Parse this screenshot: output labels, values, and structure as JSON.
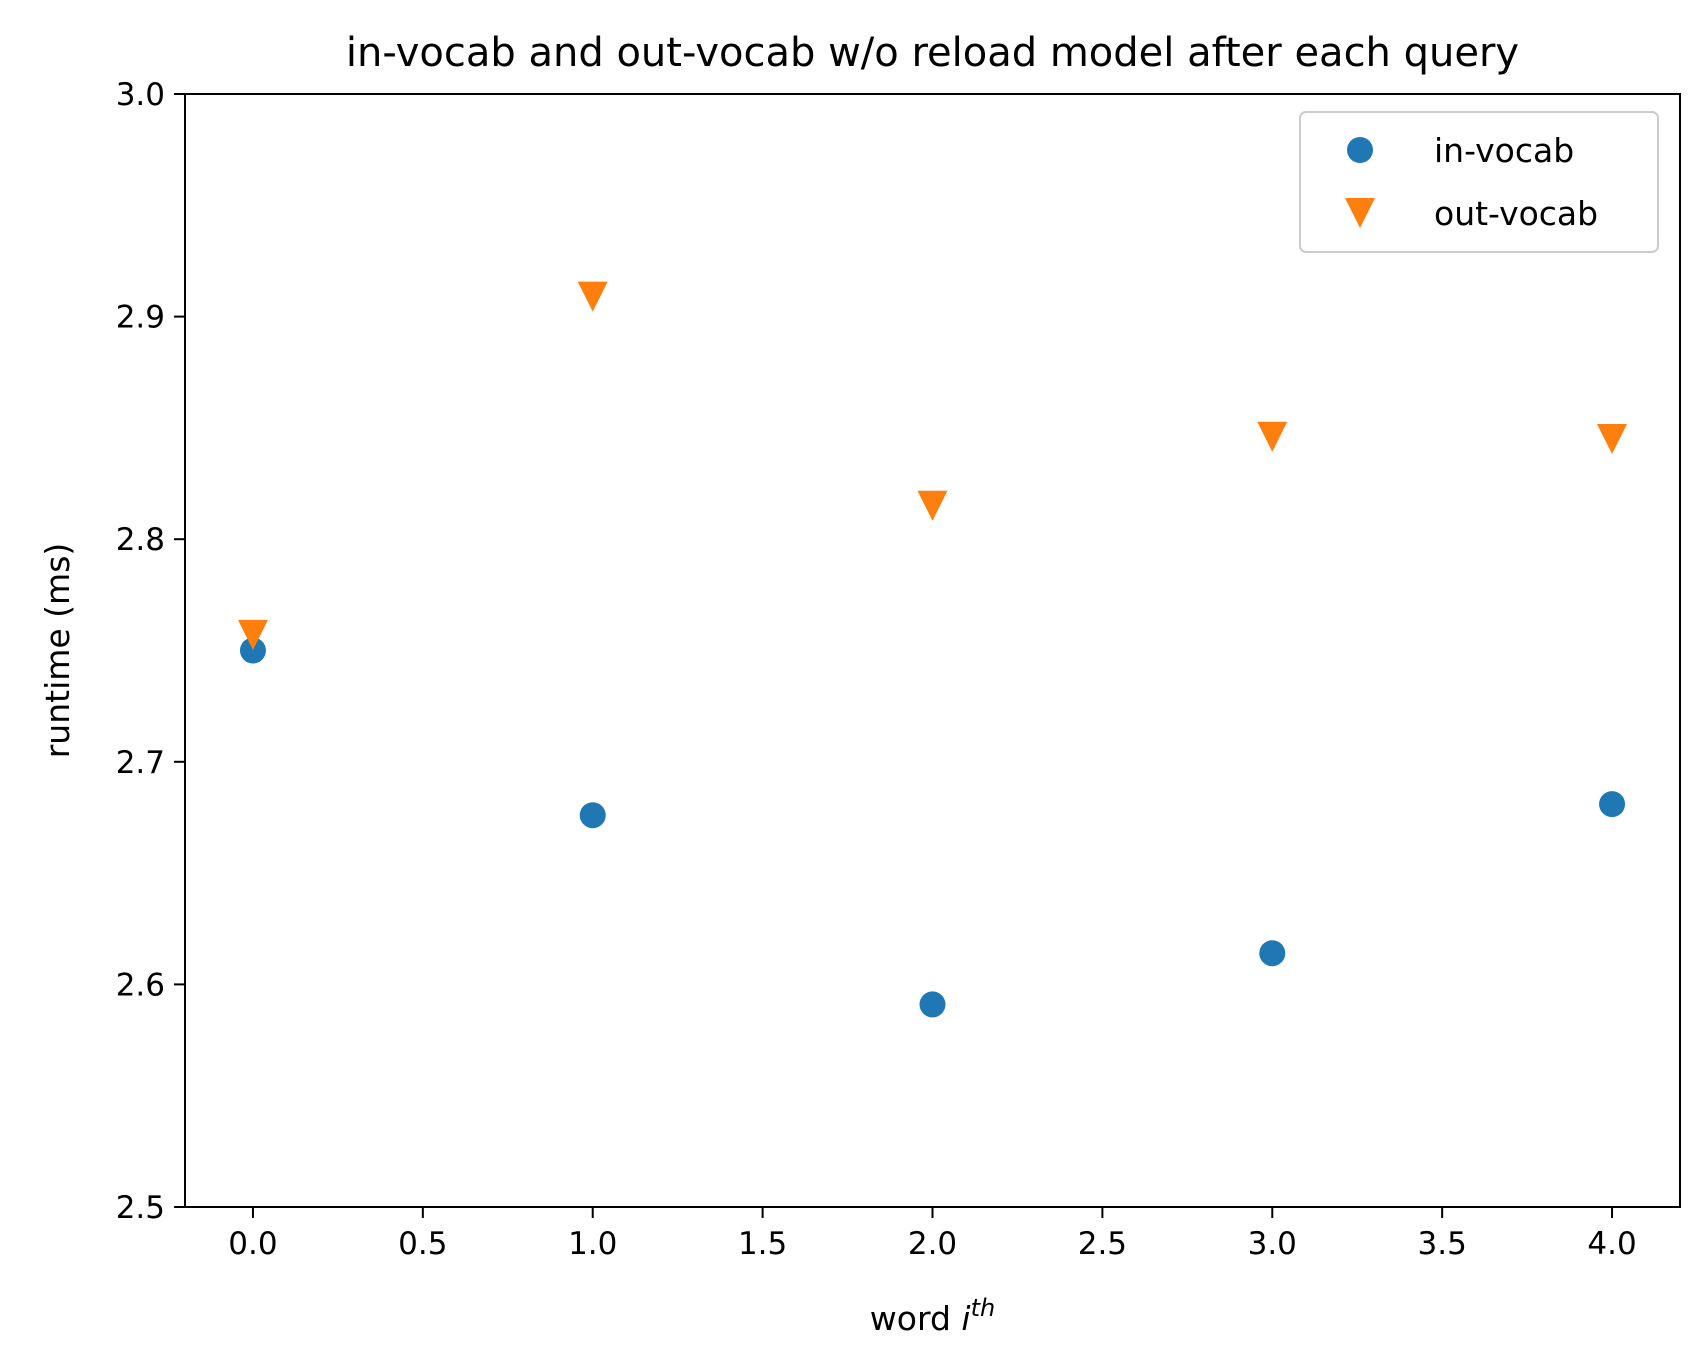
{
  "chart_data": {
    "type": "scatter",
    "title": "in-vocab and out-vocab w/o reload model after each query",
    "xlabel": {
      "prefix": "word ",
      "variable": "i",
      "superscript": "th"
    },
    "ylabel": "runtime (ms)",
    "xlim": [
      -0.2,
      4.2
    ],
    "ylim": [
      2.5,
      3.0
    ],
    "xticks": [
      0.0,
      0.5,
      1.0,
      1.5,
      2.0,
      2.5,
      3.0,
      3.5,
      4.0
    ],
    "xtick_labels": [
      "0.0",
      "0.5",
      "1.0",
      "1.5",
      "2.0",
      "2.5",
      "3.0",
      "3.5",
      "4.0"
    ],
    "yticks": [
      2.5,
      2.6,
      2.7,
      2.8,
      2.9,
      3.0
    ],
    "ytick_labels": [
      "2.5",
      "2.6",
      "2.7",
      "2.8",
      "2.9",
      "3.0"
    ],
    "grid": false,
    "legend_position": "top-right",
    "series": [
      {
        "name": "in-vocab",
        "marker": "circle",
        "color": "#1f77b4",
        "x": [
          0,
          1,
          2,
          3,
          4
        ],
        "y": [
          2.75,
          2.676,
          2.591,
          2.614,
          2.681
        ]
      },
      {
        "name": "out-vocab",
        "marker": "triangle-down",
        "color": "#ff7f0e",
        "x": [
          0,
          1,
          2,
          3,
          4
        ],
        "y": [
          2.757,
          2.909,
          2.815,
          2.846,
          2.845
        ]
      }
    ]
  }
}
